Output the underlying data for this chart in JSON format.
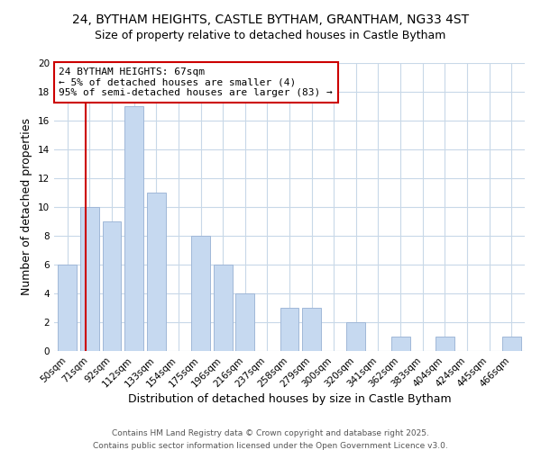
{
  "title": "24, BYTHAM HEIGHTS, CASTLE BYTHAM, GRANTHAM, NG33 4ST",
  "subtitle": "Size of property relative to detached houses in Castle Bytham",
  "xlabel": "Distribution of detached houses by size in Castle Bytham",
  "ylabel": "Number of detached properties",
  "bar_labels": [
    "50sqm",
    "71sqm",
    "92sqm",
    "112sqm",
    "133sqm",
    "154sqm",
    "175sqm",
    "196sqm",
    "216sqm",
    "237sqm",
    "258sqm",
    "279sqm",
    "300sqm",
    "320sqm",
    "341sqm",
    "362sqm",
    "383sqm",
    "404sqm",
    "424sqm",
    "445sqm",
    "466sqm"
  ],
  "bar_values": [
    6,
    10,
    9,
    17,
    11,
    0,
    8,
    6,
    4,
    0,
    3,
    3,
    0,
    2,
    0,
    1,
    0,
    1,
    0,
    0,
    1
  ],
  "bar_color": "#c6d9f0",
  "bar_edge_color": "#a0b8d8",
  "annotation_text_line1": "24 BYTHAM HEIGHTS: 67sqm",
  "annotation_text_line2": "← 5% of detached houses are smaller (4)",
  "annotation_text_line3": "95% of semi-detached houses are larger (83) →",
  "ref_line_color": "#cc0000",
  "ylim": [
    0,
    20
  ],
  "yticks": [
    0,
    2,
    4,
    6,
    8,
    10,
    12,
    14,
    16,
    18,
    20
  ],
  "footnote1": "Contains HM Land Registry data © Crown copyright and database right 2025.",
  "footnote2": "Contains public sector information licensed under the Open Government Licence v3.0.",
  "bg_color": "#ffffff",
  "grid_color": "#c8d8e8",
  "title_fontsize": 10,
  "subtitle_fontsize": 9,
  "axis_label_fontsize": 9,
  "tick_fontsize": 7.5,
  "annotation_fontsize": 8,
  "footnote_fontsize": 6.5
}
